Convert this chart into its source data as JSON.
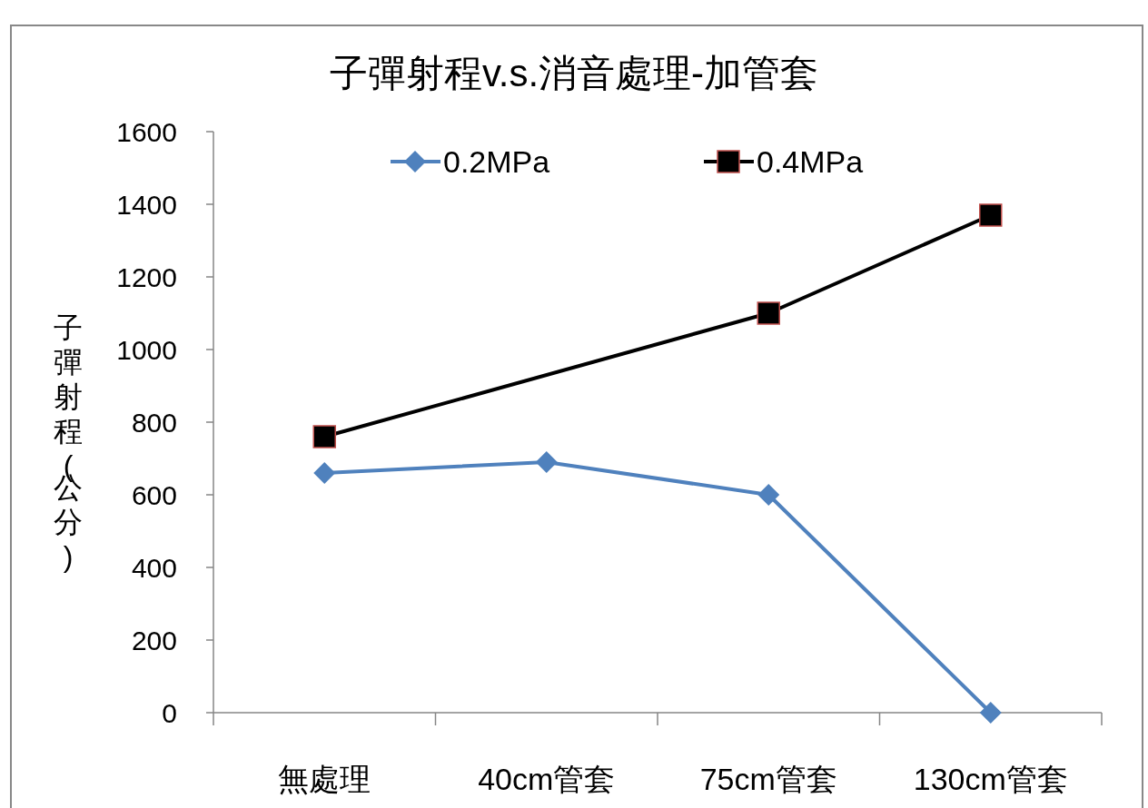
{
  "chart_data": {
    "type": "line",
    "title": "子彈射程v.s.消音處理-加管套",
    "ylabel": "子彈射程(公分)",
    "categories": [
      "無處理",
      "40cm管套",
      "75cm管套",
      "130cm管套"
    ],
    "series": [
      {
        "name": "0.2MPa",
        "color": "#4f81bd",
        "marker": "diamond",
        "values": [
          660,
          690,
          600,
          0
        ]
      },
      {
        "name": "0.4MPa",
        "color": "#000000",
        "marker": "square",
        "values": [
          760,
          null,
          1100,
          1370
        ]
      }
    ],
    "ylim": [
      0,
      1600
    ],
    "yticks": [
      0,
      200,
      400,
      600,
      800,
      1000,
      1200,
      1400,
      1600
    ],
    "grid": false,
    "legend": "top",
    "line_style": "solid"
  }
}
